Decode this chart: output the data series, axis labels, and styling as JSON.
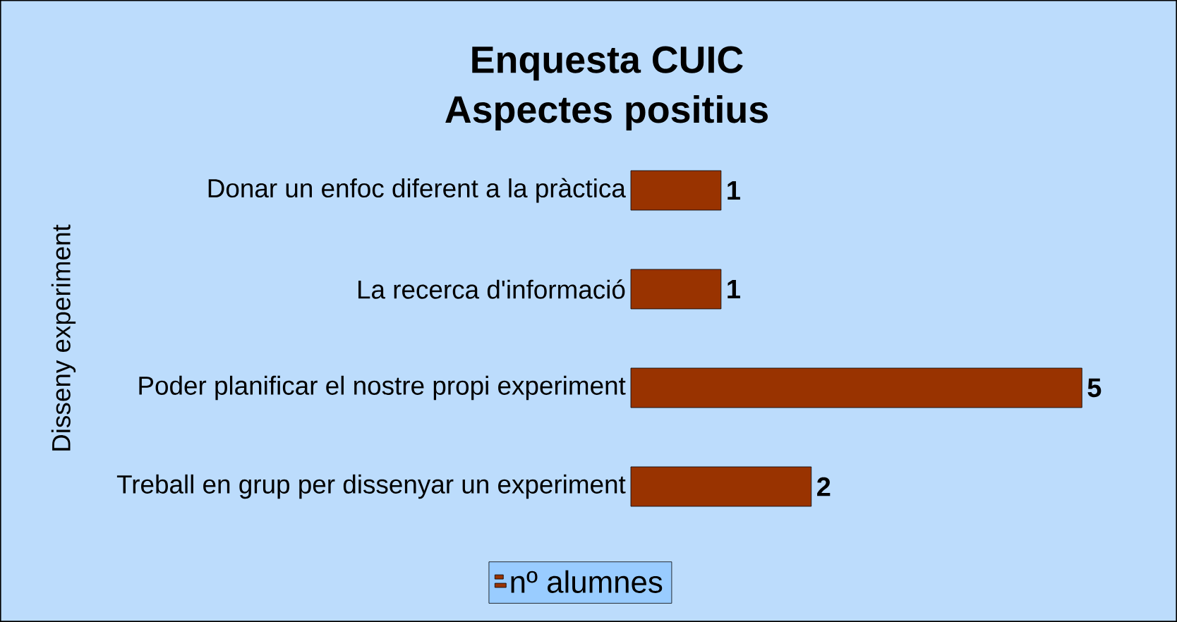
{
  "chart_data": {
    "type": "bar",
    "orientation": "horizontal",
    "title": "Enquesta CUIC",
    "subtitle": "Aspectes positius",
    "ylabel": "Disseny experiment",
    "categories": [
      "Donar un enfoc diferent a la pràctica",
      "La recerca d'informació",
      "Poder planificar el nostre propi experiment",
      "Treball en grup per dissenyar un experiment"
    ],
    "series": [
      {
        "name": "nº alumnes",
        "color": "#993300",
        "values": [
          1,
          1,
          5,
          2
        ]
      }
    ],
    "data_labels": true,
    "legend": "bottom"
  }
}
